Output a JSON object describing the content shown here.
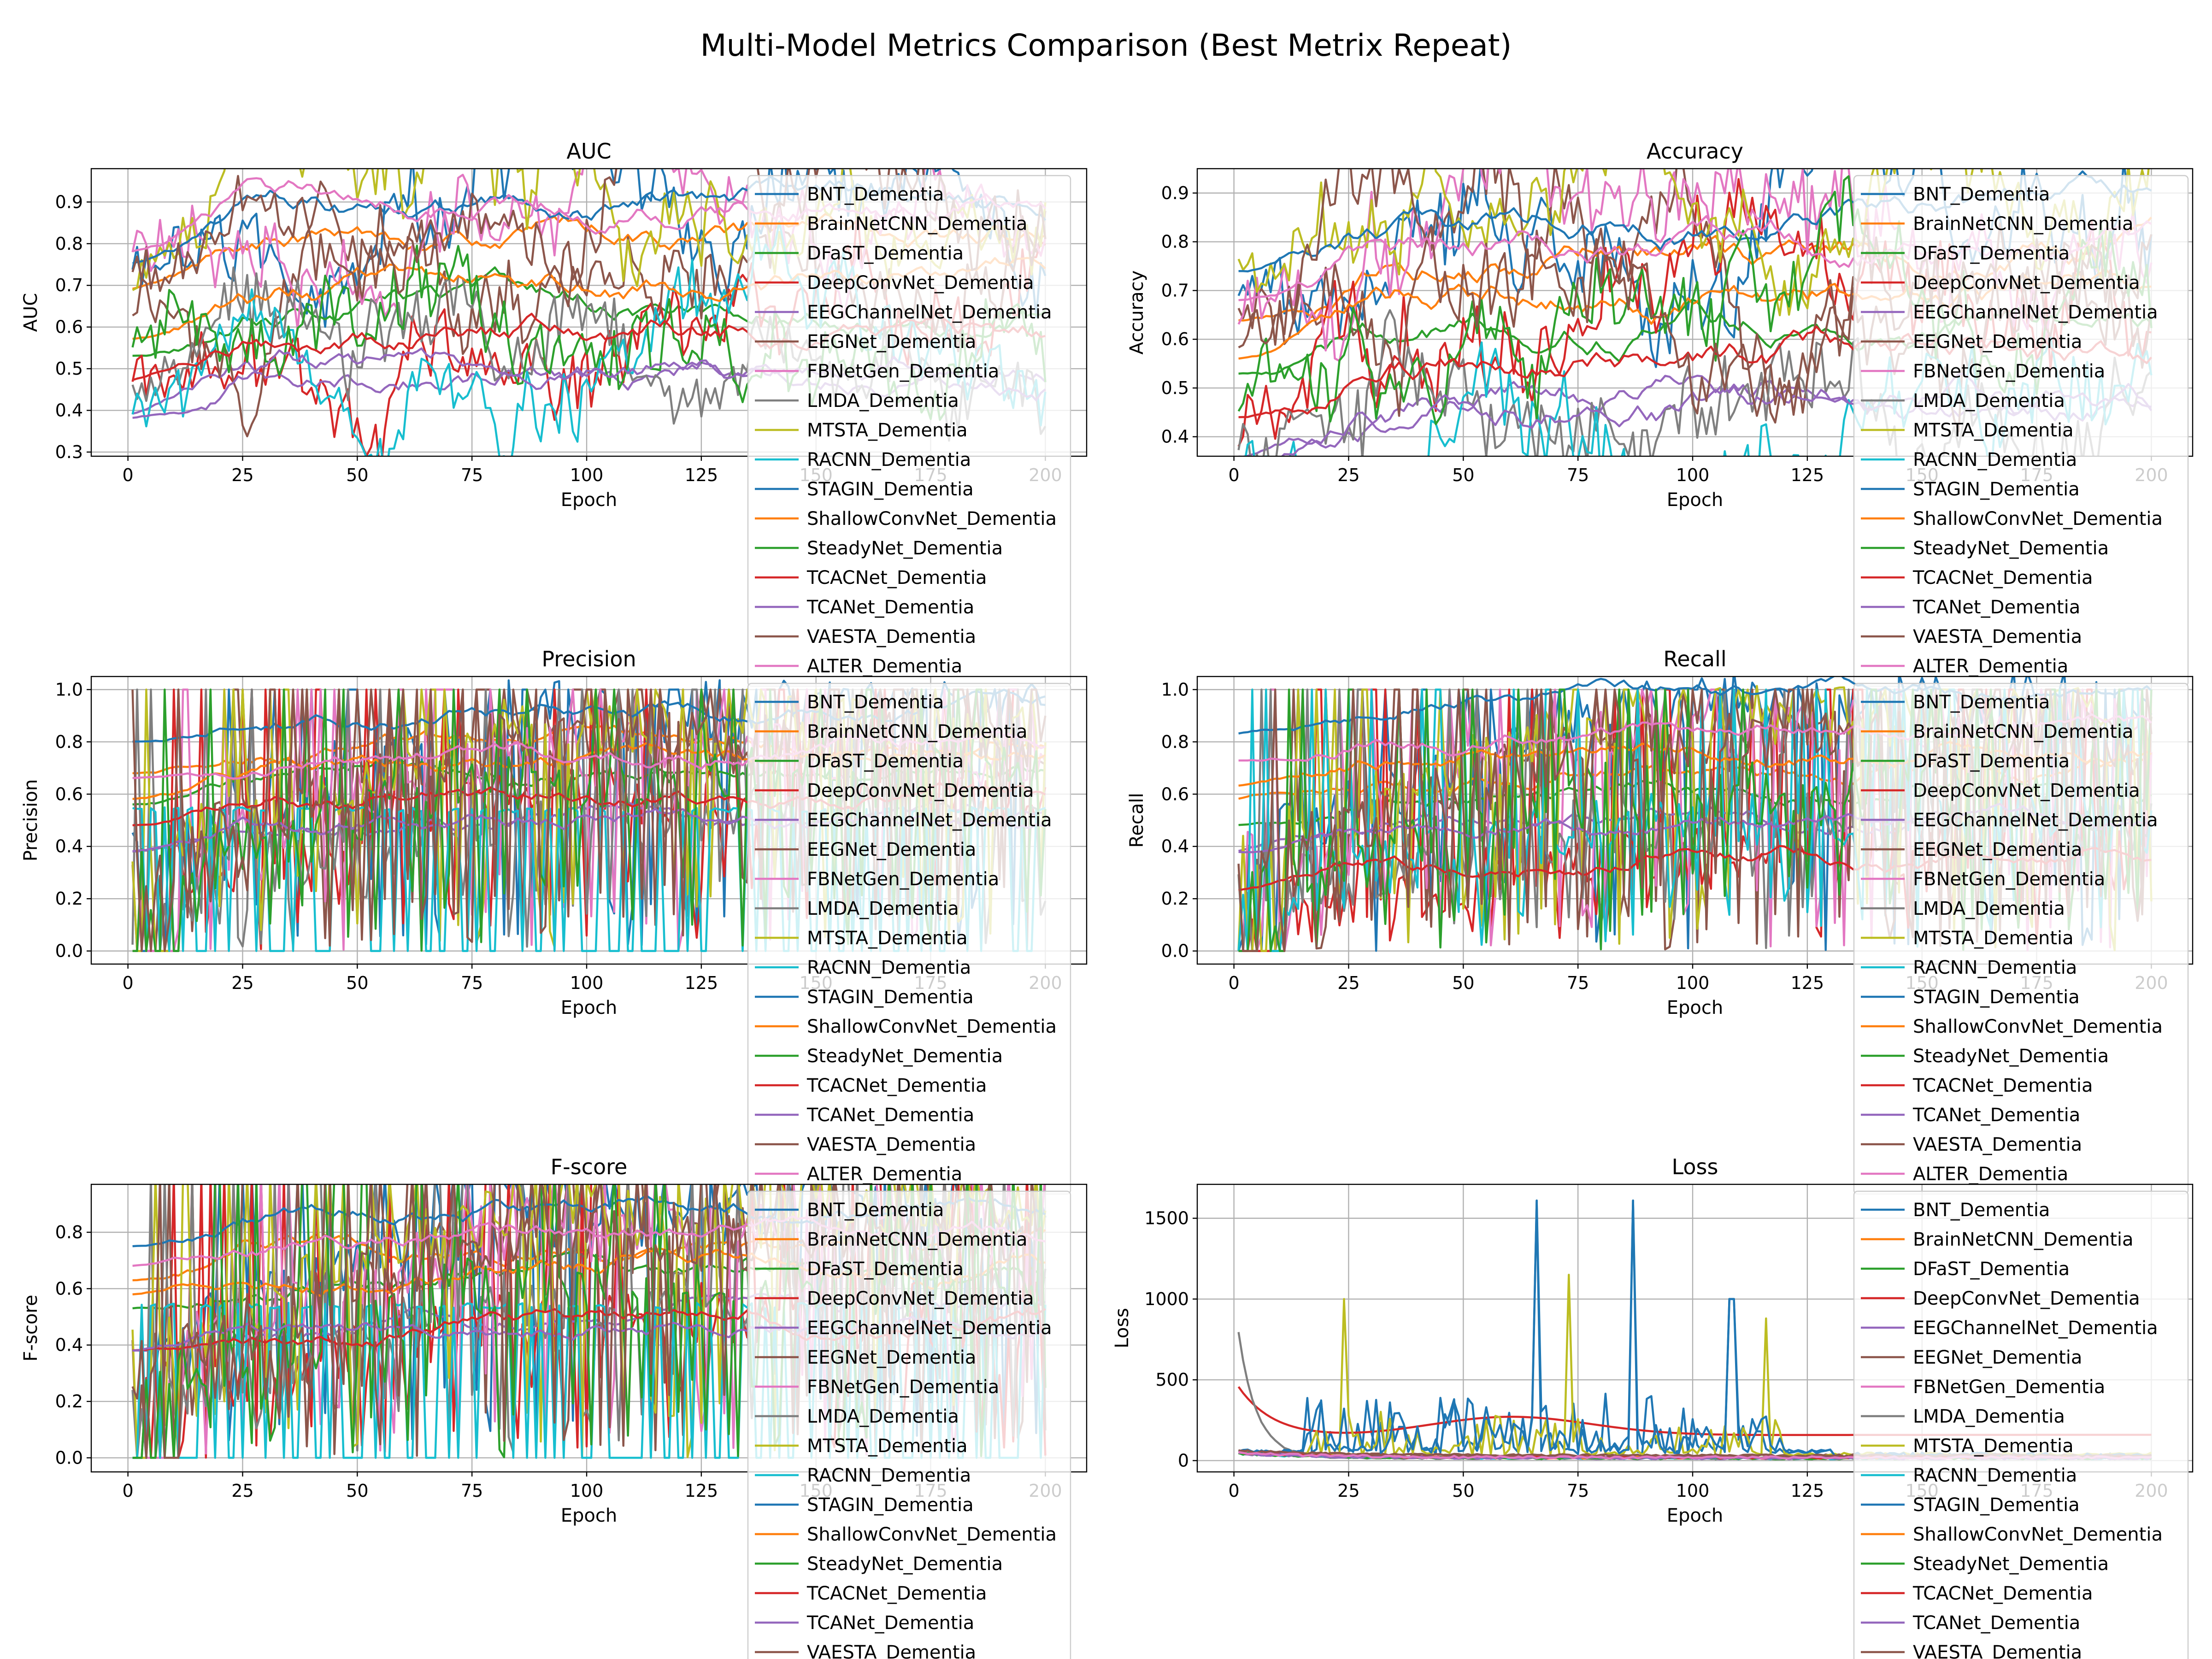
{
  "figure": {
    "title": "Multi-Model Metrics Comparison (Best Metrix Repeat)"
  },
  "legend_entries": [
    "BNT_Dementia",
    "BrainNetCNN_Dementia",
    "DFaST_Dementia",
    "DeepConvNet_Dementia",
    "EEGChannelNet_Dementia",
    "EEGNet_Dementia",
    "FBNetGen_Dementia",
    "LMDA_Dementia",
    "MTSTA_Dementia",
    "RACNN_Dementia",
    "STAGIN_Dementia",
    "ShallowConvNet_Dementia",
    "SteadyNet_Dementia",
    "TCACNet_Dementia",
    "TCANet_Dementia",
    "VAESTA_Dementia",
    "ALTER_Dementia"
  ],
  "series_colors": [
    "#1f77b4",
    "#ff7f0e",
    "#2ca02c",
    "#d62728",
    "#9467bd",
    "#8c564b",
    "#e377c2",
    "#7f7f7f",
    "#bcbd22",
    "#17becf",
    "#1f77b4",
    "#ff7f0e",
    "#2ca02c",
    "#d62728",
    "#9467bd",
    "#8c564b",
    "#e377c2"
  ],
  "chart_data": [
    {
      "type": "line",
      "title": "AUC",
      "xlabel": "Epoch",
      "ylabel": "AUC",
      "xlim": [
        -8,
        209
      ],
      "ylim": [
        0.29,
        0.98
      ],
      "xticks": [
        0,
        25,
        50,
        75,
        100,
        125,
        150,
        175,
        200
      ],
      "xtick_labels": [
        "0",
        "25",
        "50",
        "75",
        "100",
        "125",
        "150",
        "175",
        "200"
      ],
      "yticks": [
        0.3,
        0.4,
        0.5,
        0.6,
        0.7,
        0.8,
        0.9
      ],
      "ytick_labels": [
        "0.3",
        "0.4",
        "0.5",
        "0.6",
        "0.7",
        "0.8",
        "0.9"
      ],
      "grid": true,
      "legend": "upper right, overflows below plot",
      "series_finals": [
        0.87,
        0.81,
        0.65,
        0.6,
        0.51,
        0.8,
        0.91,
        0.55,
        0.86,
        0.52,
        0.87,
        0.69,
        0.68,
        0.59,
        0.5,
        0.86,
        0.9
      ]
    },
    {
      "type": "line",
      "title": "Accuracy",
      "xlabel": "Epoch",
      "ylabel": "Accuracy",
      "xlim": [
        -8,
        209
      ],
      "ylim": [
        0.36,
        0.95
      ],
      "xticks": [
        0,
        25,
        50,
        75,
        100,
        125,
        150,
        175,
        200
      ],
      "xtick_labels": [
        "0",
        "25",
        "50",
        "75",
        "100",
        "125",
        "150",
        "175",
        "200"
      ],
      "yticks": [
        0.4,
        0.5,
        0.6,
        0.7,
        0.8,
        0.9
      ],
      "ytick_labels": [
        "0.4",
        "0.5",
        "0.6",
        "0.7",
        "0.8",
        "0.9"
      ],
      "grid": true,
      "legend": "upper right, overflows below plot",
      "series_finals": [
        0.86,
        0.76,
        0.65,
        0.55,
        0.48,
        0.75,
        0.8,
        0.5,
        0.85,
        0.48,
        0.86,
        0.68,
        0.62,
        0.56,
        0.46,
        0.75,
        0.8
      ]
    },
    {
      "type": "line",
      "title": "Precision",
      "xlabel": "Epoch",
      "ylabel": "Precision",
      "xlim": [
        -8,
        209
      ],
      "ylim": [
        -0.05,
        1.05
      ],
      "xticks": [
        0,
        25,
        50,
        75,
        100,
        125,
        150,
        175,
        200
      ],
      "xtick_labels": [
        "0",
        "25",
        "50",
        "75",
        "100",
        "125",
        "150",
        "175",
        "200"
      ],
      "yticks": [
        0.0,
        0.2,
        0.4,
        0.6,
        0.8,
        1.0
      ],
      "ytick_labels": [
        "0.0",
        "0.2",
        "0.4",
        "0.6",
        "0.8",
        "1.0"
      ],
      "grid": true,
      "legend": "upper right, overflows below plot",
      "series_finals": [
        0.92,
        0.8,
        0.68,
        0.6,
        0.5,
        0.82,
        0.75,
        0.53,
        0.85,
        0.5,
        0.92,
        0.7,
        0.66,
        0.6,
        0.5,
        0.8,
        0.78
      ]
    },
    {
      "type": "line",
      "title": "Recall",
      "xlabel": "Epoch",
      "ylabel": "Recall",
      "xlim": [
        -8,
        209
      ],
      "ylim": [
        -0.05,
        1.05
      ],
      "xticks": [
        0,
        25,
        50,
        75,
        100,
        125,
        150,
        175,
        200
      ],
      "xtick_labels": [
        "0",
        "25",
        "50",
        "75",
        "100",
        "125",
        "150",
        "175",
        "200"
      ],
      "yticks": [
        0.0,
        0.2,
        0.4,
        0.6,
        0.8,
        1.0
      ],
      "ytick_labels": [
        "0.0",
        "0.2",
        "0.4",
        "0.6",
        "0.8",
        "1.0"
      ],
      "grid": true,
      "legend": "upper right, overflows below plot",
      "series_finals": [
        0.95,
        0.7,
        0.6,
        0.35,
        0.5,
        0.8,
        0.85,
        0.5,
        0.9,
        0.5,
        0.95,
        0.75,
        0.6,
        0.35,
        0.5,
        0.8,
        0.85
      ]
    },
    {
      "type": "line",
      "title": "F-score",
      "xlabel": "Epoch",
      "ylabel": "F-score",
      "xlim": [
        -8,
        209
      ],
      "ylim": [
        -0.05,
        0.97
      ],
      "xticks": [
        0,
        25,
        50,
        75,
        100,
        125,
        150,
        175,
        200
      ],
      "xtick_labels": [
        "0",
        "25",
        "50",
        "75",
        "100",
        "125",
        "150",
        "175",
        "200"
      ],
      "yticks": [
        0.0,
        0.2,
        0.4,
        0.6,
        0.8
      ],
      "ytick_labels": [
        "0.0",
        "0.2",
        "0.4",
        "0.6",
        "0.8"
      ],
      "grid": true,
      "legend": "upper right, overflows below plot",
      "series_finals": [
        0.87,
        0.75,
        0.65,
        0.5,
        0.5,
        0.78,
        0.8,
        0.55,
        0.87,
        0.5,
        0.87,
        0.7,
        0.62,
        0.5,
        0.5,
        0.78,
        0.8
      ]
    },
    {
      "type": "line",
      "title": "Loss",
      "xlabel": "Epoch",
      "ylabel": "Loss",
      "xlim": [
        -8,
        209
      ],
      "ylim": [
        -70,
        1710
      ],
      "xticks": [
        0,
        25,
        50,
        75,
        100,
        125,
        150,
        175,
        200
      ],
      "xtick_labels": [
        "0",
        "25",
        "50",
        "75",
        "100",
        "125",
        "150",
        "175",
        "200"
      ],
      "yticks": [
        0,
        500,
        1000,
        1500
      ],
      "ytick_labels": [
        "0",
        "500",
        "1000",
        "1500"
      ],
      "grid": true,
      "legend": "upper right, overflows below plot",
      "series_finals": [
        20,
        15,
        10,
        120,
        10,
        30,
        15,
        10,
        20,
        10,
        20,
        15,
        10,
        15,
        10,
        30,
        15
      ]
    }
  ]
}
